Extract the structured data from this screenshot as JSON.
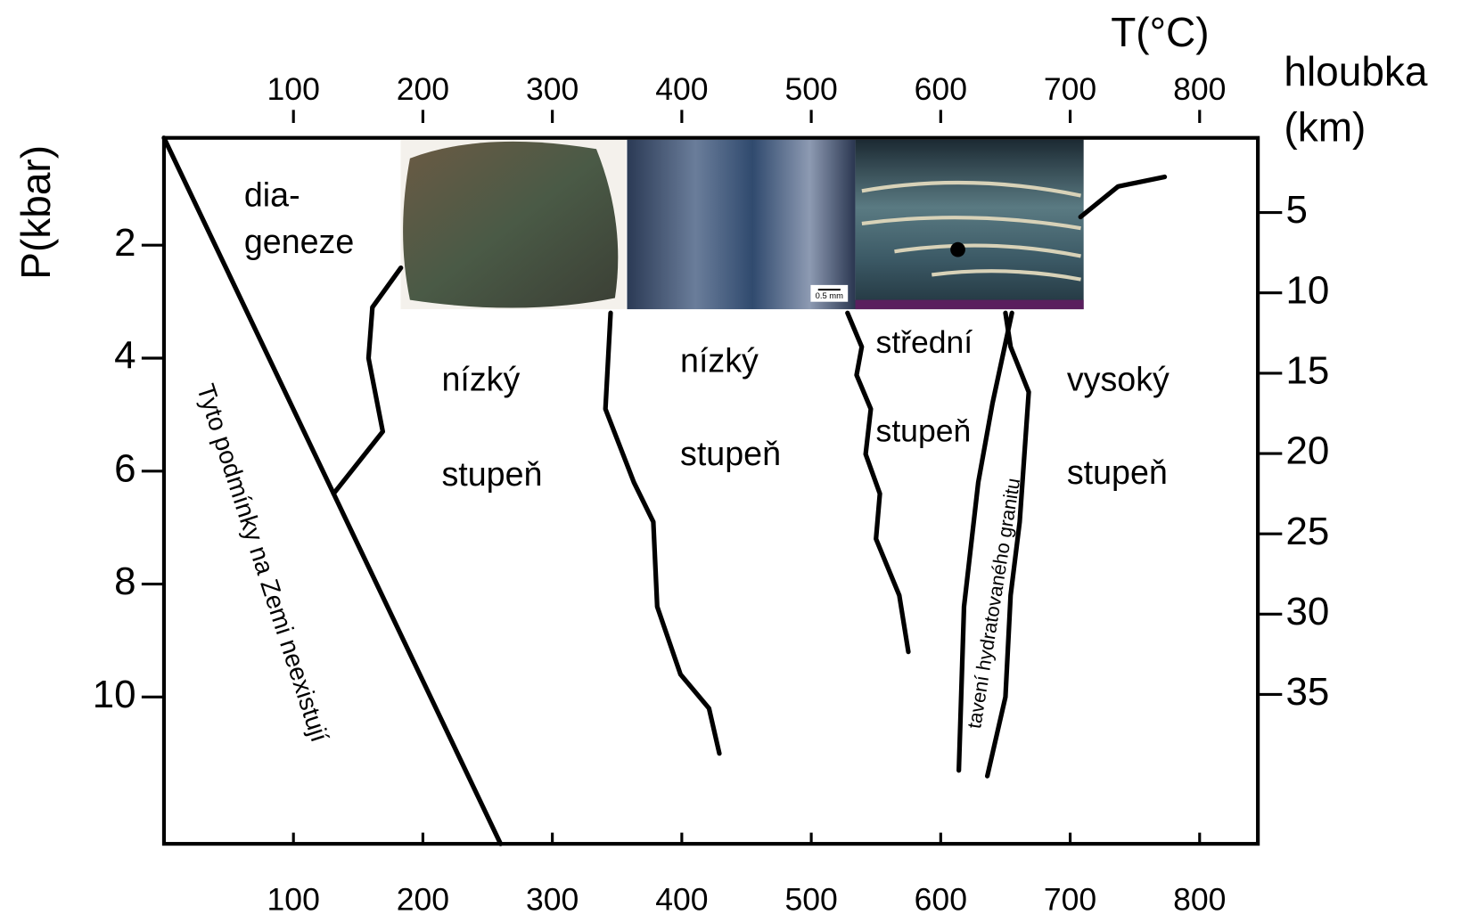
{
  "chart_data": {
    "type": "line",
    "x_label": "T(°C)",
    "y_label": "P(kbar)",
    "y2_label": [
      "hloubka",
      "(km)"
    ],
    "xlim": [
      0,
      845
    ],
    "xticks": [
      100,
      200,
      300,
      400,
      500,
      600,
      700,
      800
    ],
    "ylim": [
      0,
      12.6
    ],
    "yticks": [
      2,
      4,
      6,
      8,
      10
    ],
    "y2lim": [
      0,
      44.3
    ],
    "y2ticks": [
      5,
      10,
      15,
      20,
      25,
      30,
      35
    ],
    "annotations": [
      "dia-",
      "geneze",
      "nízký",
      "stupeň",
      "nízký",
      "stupeň",
      "střední",
      "stupeň",
      "vysoký",
      "stupeň",
      "Tyto podmínky na Zemi neexistují",
      "tavení hydratovaného granitu",
      "0.5 mm"
    ],
    "series": [
      {
        "color": "#000000",
        "x": [
          0,
          260
        ],
        "values": [
          0.1,
          12.6
        ]
      },
      {
        "color": "#000000",
        "x": [
          131,
          169,
          158,
          161,
          183
        ],
        "values": [
          6.4,
          5.3,
          4.0,
          3.1,
          2.4
        ]
      },
      {
        "color": "#000000",
        "x": [
          345,
          341,
          363,
          378,
          381,
          399,
          421,
          429
        ],
        "values": [
          3.2,
          4.9,
          6.2,
          6.9,
          8.4,
          9.6,
          10.2,
          11.0
        ]
      },
      {
        "color": "#000000",
        "x": [
          528,
          539,
          535,
          546,
          542,
          553,
          550,
          568,
          575
        ],
        "values": [
          3.2,
          3.8,
          4.3,
          4.9,
          5.7,
          6.4,
          7.2,
          8.2,
          9.2
        ]
      },
      {
        "color": "#000000",
        "x": [
          614,
          618,
          629,
          640,
          655
        ],
        "values": [
          11.3,
          8.4,
          6.2,
          4.8,
          3.2
        ]
      },
      {
        "color": "#000000",
        "x": [
          636,
          650,
          654,
          661,
          668,
          654,
          650,
          null,
          708,
          737,
          773
        ],
        "values": [
          11.4,
          10.0,
          8.2,
          6.9,
          4.6,
          3.8,
          3.2,
          null,
          1.5,
          0.96,
          0.79
        ]
      }
    ]
  }
}
